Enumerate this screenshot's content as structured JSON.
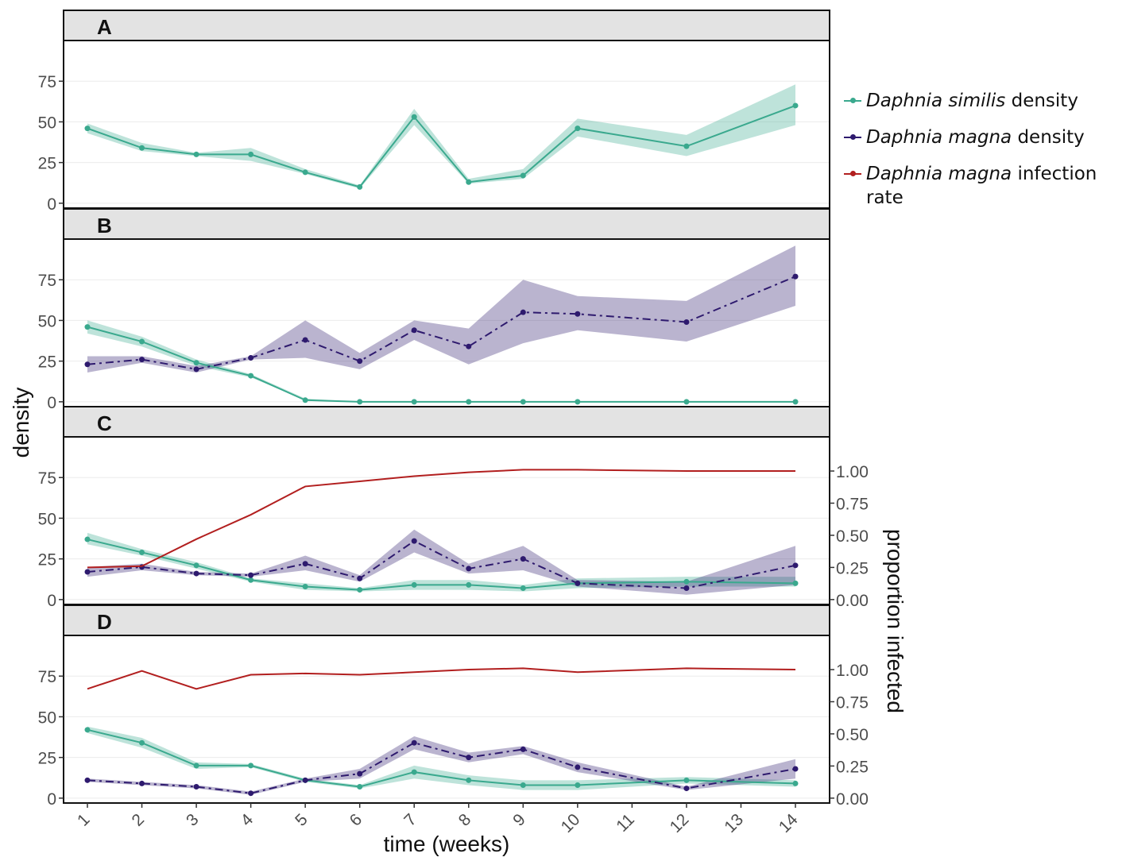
{
  "chart_data": {
    "type": "line",
    "xlabel": "time (weeks)",
    "ylabel": "density",
    "ylabel_right": "proportion infected",
    "x": [
      1,
      2,
      3,
      4,
      5,
      6,
      7,
      8,
      9,
      10,
      11,
      12,
      13,
      14
    ],
    "x_tick_labels": [
      "1",
      "2",
      "3",
      "4",
      "5",
      "6",
      "7",
      "8",
      "9",
      "10",
      "11",
      "12",
      "13",
      "14"
    ],
    "ylim": [
      -3,
      100
    ],
    "y_ticks": [
      0,
      25,
      50,
      75
    ],
    "y_right_ticks": [
      0,
      0.25,
      0.5,
      0.75,
      1.0
    ],
    "y_right_tick_labels": [
      "0.00",
      "0.25",
      "0.50",
      "0.75",
      "1.00"
    ],
    "y_right_scale_note": "proportion 1.00 aligns with density 79",
    "colors": {
      "similis": "#3aa98e",
      "magna": "#2e1a6e",
      "infection": "#b21f1f"
    },
    "legend": [
      {
        "species": "Daphnia similis",
        "suffix": "density",
        "color": "#3aa98e"
      },
      {
        "species": "Daphnia magna",
        "suffix": "density",
        "color": "#2e1a6e"
      },
      {
        "species": "Daphnia magna",
        "suffix": "infection rate",
        "color": "#b21f1f"
      }
    ],
    "panels": [
      {
        "label": "A",
        "series": [
          {
            "name": "Daphnia similis density",
            "style": "solid",
            "x": [
              1,
              2,
              3,
              4,
              5,
              6,
              7,
              8,
              9,
              10,
              12,
              14
            ],
            "values": [
              46,
              34,
              30,
              30,
              19,
              10,
              53,
              13,
              17,
              46,
              35,
              60
            ],
            "lower": [
              43,
              32,
              29,
              26,
              18,
              9,
              48,
              12,
              15,
              41,
              29,
              48
            ],
            "upper": [
              49,
              37,
              31,
              34,
              21,
              11,
              58,
              15,
              21,
              52,
              42,
              73
            ]
          }
        ]
      },
      {
        "label": "B",
        "series": [
          {
            "name": "Daphnia similis density",
            "style": "solid",
            "x": [
              1,
              2,
              3,
              4,
              5,
              6,
              7,
              8,
              9,
              10,
              12,
              14
            ],
            "values": [
              46,
              37,
              24,
              16,
              1,
              0,
              0,
              0,
              0,
              0,
              0,
              0
            ],
            "lower": [
              42,
              34,
              22,
              15,
              1,
              0,
              0,
              0,
              0,
              0,
              0,
              0
            ],
            "upper": [
              50,
              40,
              26,
              17,
              2,
              0,
              0,
              0,
              0,
              0,
              0,
              0
            ]
          },
          {
            "name": "Daphnia magna density",
            "style": "dashdot",
            "x": [
              1,
              2,
              3,
              4,
              5,
              6,
              7,
              8,
              9,
              10,
              12,
              14
            ],
            "values": [
              23,
              26,
              20,
              27,
              38,
              25,
              44,
              34,
              55,
              54,
              49,
              77
            ],
            "lower": [
              18,
              24,
              18,
              26,
              27,
              20,
              38,
              23,
              36,
              44,
              37,
              59
            ],
            "upper": [
              28,
              28,
              22,
              28,
              50,
              30,
              50,
              45,
              75,
              65,
              62,
              96
            ]
          }
        ]
      },
      {
        "label": "C",
        "series": [
          {
            "name": "Daphnia similis density",
            "style": "solid",
            "x": [
              1,
              2,
              3,
              4,
              5,
              6,
              7,
              8,
              9,
              10,
              12,
              14
            ],
            "values": [
              37,
              29,
              21,
              12,
              8,
              6,
              9,
              9,
              7,
              10,
              11,
              10
            ],
            "lower": [
              34,
              27,
              19,
              11,
              6,
              5,
              6,
              6,
              5,
              7,
              8,
              8
            ],
            "upper": [
              41,
              31,
              23,
              13,
              10,
              7,
              12,
              12,
              9,
              13,
              14,
              14
            ]
          },
          {
            "name": "Daphnia magna density",
            "style": "dashdot",
            "x": [
              1,
              2,
              3,
              4,
              5,
              6,
              7,
              8,
              9,
              10,
              12,
              14
            ],
            "values": [
              17,
              20,
              16,
              15,
              22,
              13,
              36,
              19,
              25,
              10,
              7,
              21
            ],
            "lower": [
              14,
              18,
              15,
              14,
              18,
              11,
              29,
              16,
              18,
              8,
              3,
              9
            ],
            "upper": [
              20,
              22,
              17,
              16,
              27,
              15,
              43,
              22,
              33,
              12,
              11,
              33
            ]
          },
          {
            "name": "Daphnia magna infection rate",
            "style": "solid",
            "axis": "right",
            "x": [
              1,
              2,
              3,
              4,
              5,
              6,
              7,
              8,
              9,
              10,
              12,
              14
            ],
            "values": [
              0.25,
              0.26,
              0.47,
              0.66,
              0.88,
              0.92,
              0.96,
              0.99,
              1.01,
              1.01,
              1.0,
              1.0
            ]
          }
        ]
      },
      {
        "label": "D",
        "series": [
          {
            "name": "Daphnia similis density",
            "style": "solid",
            "x": [
              1,
              2,
              3,
              4,
              5,
              6,
              7,
              8,
              9,
              10,
              12,
              14
            ],
            "values": [
              42,
              34,
              20,
              20,
              11,
              7,
              16,
              11,
              8,
              8,
              11,
              9
            ],
            "lower": [
              40,
              31,
              18,
              19,
              10,
              6,
              12,
              8,
              5,
              5,
              9,
              7
            ],
            "upper": [
              44,
              37,
              22,
              21,
              12,
              8,
              20,
              14,
              11,
              11,
              13,
              11
            ]
          },
          {
            "name": "Daphnia magna density",
            "style": "dashdot",
            "x": [
              1,
              2,
              3,
              4,
              5,
              6,
              7,
              8,
              9,
              10,
              12,
              14
            ],
            "values": [
              11,
              9,
              7,
              3,
              11,
              15,
              34,
              25,
              30,
              19,
              6,
              18
            ],
            "lower": [
              10,
              8,
              6,
              2,
              10,
              12,
              30,
              22,
              27,
              16,
              5,
              12
            ],
            "upper": [
              12,
              10,
              8,
              4,
              12,
              18,
              38,
              28,
              32,
              22,
              7,
              24
            ]
          },
          {
            "name": "Daphnia magna infection rate",
            "style": "solid",
            "axis": "right",
            "x": [
              1,
              2,
              3,
              4,
              5,
              6,
              7,
              8,
              9,
              10,
              12,
              14
            ],
            "values": [
              0.85,
              0.99,
              0.85,
              0.96,
              0.97,
              0.96,
              0.98,
              1.0,
              1.01,
              0.98,
              1.01,
              1.0
            ]
          }
        ]
      }
    ]
  }
}
